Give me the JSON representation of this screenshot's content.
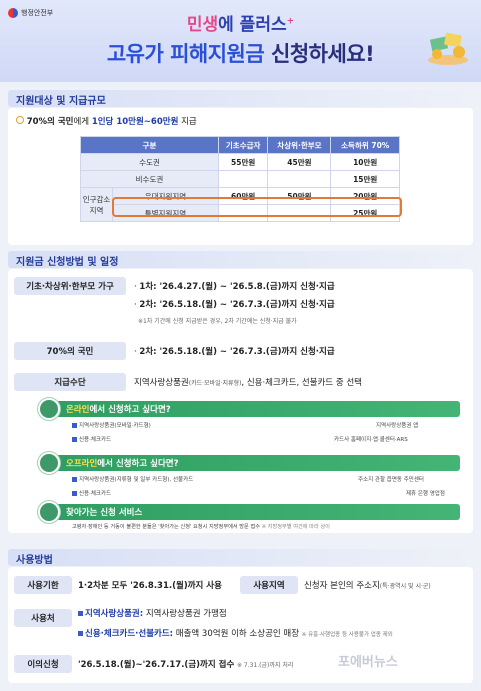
{
  "header": {
    "ministry": "행정안전부",
    "title_line1_a": "민생",
    "title_line1_b": "에 플러스",
    "title_line2_a": "고유가 피해지원금",
    "title_line2_b": " 신청하세요!"
  },
  "section1": {
    "title": "지원대상 및 지급규모",
    "summary_a": "70%의 국민",
    "summary_b": "에게 ",
    "summary_c": "1인당 10만원~60만원",
    "summary_d": " 지급",
    "table": {
      "headers": [
        "구분",
        "기초수급자",
        "차상위·한부모",
        "소득하위 70%"
      ],
      "rows": [
        {
          "group": "",
          "label": "수도권",
          "v1": "55만원",
          "v2": "45만원",
          "v3": "10만원"
        },
        {
          "group": "",
          "label": "비수도권",
          "v1": "",
          "v2": "",
          "v3": "15만원"
        },
        {
          "group": "인구감소 지역",
          "label": "우대지원지역",
          "v1": "60만원",
          "v2": "50만원",
          "v3": "20만원"
        },
        {
          "group": "",
          "label": "특별지원지역",
          "v1": "",
          "v2": "",
          "v3": "25만원"
        }
      ]
    }
  },
  "section2": {
    "title": "지원금 신청방법 및 일정",
    "group1_label": "기초·차상위·한부모 가구",
    "round1": "1차: '26.4.27.(월) ~ '26.5.8.(금)까지 신청·지급",
    "round2": "2차: '26.5.18.(월) ~ '26.7.3.(금)까지 신청·지급",
    "note1": "※1차 기간에 신청 지급받은 경우, 2차 기간에는 신청·지급 불가",
    "group2_label": "70%의 국민",
    "round2b": "2차: '26.5.18.(월) ~ '26.7.3.(금)까지 신청·지급",
    "payment_label": "지급수단",
    "payment_text_a": "지역사랑상품권",
    "payment_text_b": "(카드·모바일·지류형)",
    "payment_text_c": ", 신용·체크카드, 선불카드 중 선택",
    "online_bar_a": "온라인",
    "online_bar_b": "에서 신청하고 싶다면?",
    "online_l1": "지역사랑상품권(모바일·카드형)",
    "online_r1": "지역사랑상품권 앱",
    "online_l2": "신용·체크카드",
    "online_r2": "카드사 홈페이지·앱·콜센터·ARS",
    "offline_bar_a": "오프라인",
    "offline_bar_b": "에서 신청하고 싶다면?",
    "offline_l1": "지역사랑상품권(지류형 및 일부 카드형), 선불카드",
    "offline_r1": "주소지 관할 읍면동 주민센터",
    "offline_l2": "신용·체크카드",
    "offline_r2": "제휴 은행 영업점",
    "visit_bar": "찾아가는 신청 서비스",
    "visit_text": "고령자·장애인 등 거동이 불편한 분들은 '찾아가는 신청' 요청시 지방정부에서 방문 접수",
    "visit_note": "※ 지방정부별 여건에 따라 상이"
  },
  "section3": {
    "title": "사용방법",
    "period_label": "사용기한",
    "period_text": "1·2차분 모두 '26.8.31.(월)까지 사용",
    "region_label": "사용지역",
    "region_text_a": "신청자 본인의 주소지",
    "region_text_b": "(특·광역시 및 시·군)",
    "place_label": "사용처",
    "place1_a": "지역사랑상품권:",
    "place1_b": " 지역사랑상품권 가맹점",
    "place2_a": "신용·체크카드·선불카드:",
    "place2_b": " 매출액 30억원 이하 소상공인 매장",
    "place2_note": "※ 유흥·사행업종 등 사용불가 업종 제외",
    "objection_label": "이의신청",
    "objection_text": "'26.5.18.(월)~'26.7.17.(금)까지 접수",
    "objection_note": "※ 7.31.(금)까지 처리"
  },
  "watermark": "포에버뉴스",
  "colors": {
    "primary": "#2b3fb0",
    "accent": "#e07a35",
    "green": "#3d9a68"
  }
}
